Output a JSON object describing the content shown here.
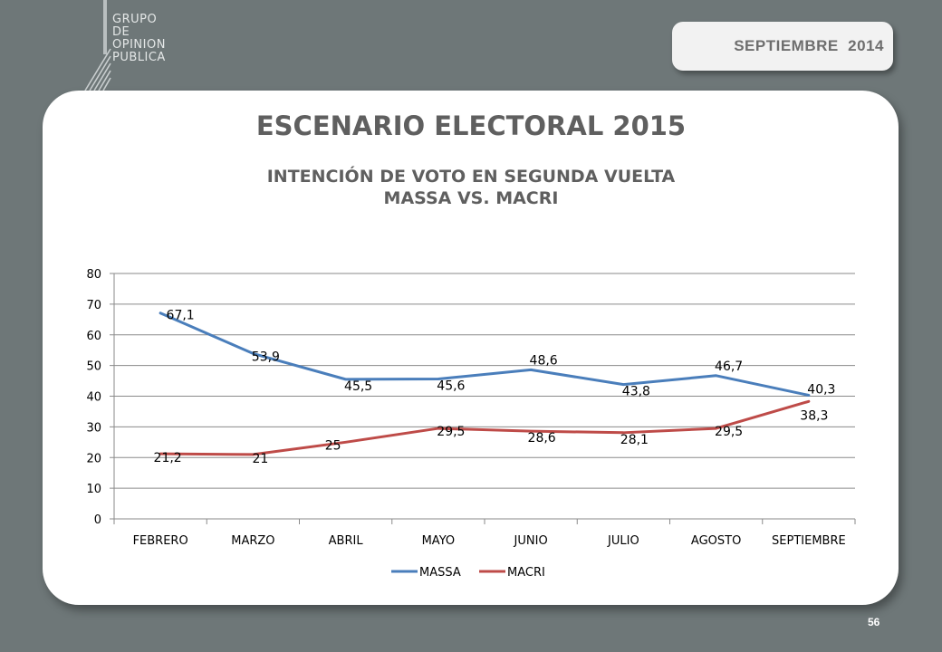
{
  "logo": {
    "lines": [
      "GRUPO",
      "DE",
      "OPINION",
      "PUBLICA"
    ]
  },
  "header": {
    "date_label": "SEPTIEMBRE  2014"
  },
  "slide": {
    "title": "ESCENARIO ELECTORAL 2015",
    "subtitle_line1": "INTENCIÓN DE VOTO EN SEGUNDA VUELTA",
    "subtitle_line2": "MASSA  VS.  MACRI",
    "page_number": "56"
  },
  "colors": {
    "massa": "#4a7ebb",
    "macri": "#be4b48",
    "background": "#6e7778"
  },
  "chart_data": {
    "type": "line",
    "categories": [
      "FEBRERO",
      "MARZO",
      "ABRIL",
      "MAYO",
      "JUNIO",
      "JULIO",
      "AGOSTO",
      "SEPTIEMBRE"
    ],
    "series": [
      {
        "name": "MASSA",
        "values": [
          67.1,
          53.9,
          45.5,
          45.6,
          48.6,
          43.8,
          46.7,
          40.3
        ],
        "labels": [
          "67,1",
          "53,9",
          "45,5",
          "45,6",
          "48,6",
          "43,8",
          "46,7",
          "40,3"
        ]
      },
      {
        "name": "MACRI",
        "values": [
          21.2,
          21,
          25,
          29.5,
          28.6,
          28.1,
          29.5,
          38.3
        ],
        "labels": [
          "21,2",
          "21",
          "25",
          "29,5",
          "28,6",
          "28,1",
          "29,5",
          "38,3"
        ]
      }
    ],
    "ylim": [
      0,
      80
    ],
    "yticks": [
      0,
      10,
      20,
      30,
      40,
      50,
      60,
      70,
      80
    ],
    "grid": true,
    "legend": "bottom"
  }
}
